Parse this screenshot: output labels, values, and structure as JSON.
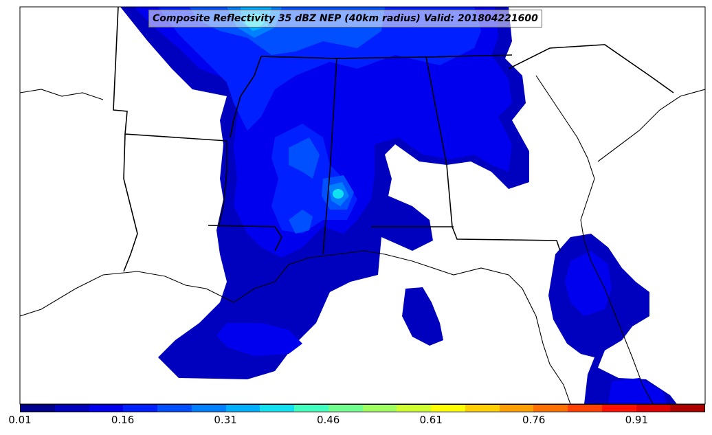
{
  "title": "Composite Reflectivity 35 dBZ NEP (40km radius) Valid: 201804221600",
  "colorbar": {
    "colors": [
      "#00008f",
      "#0000bf",
      "#0000ef",
      "#0020ff",
      "#0050ff",
      "#0080ff",
      "#00b0ff",
      "#10e0ef",
      "#40ffbf",
      "#70ff8f",
      "#a0ff60",
      "#d0ff30",
      "#ffff00",
      "#ffcf00",
      "#ff9f00",
      "#ff7000",
      "#ff4000",
      "#ff1000",
      "#df0000",
      "#af0000"
    ],
    "ticks": [
      "0.01",
      "0.16",
      "0.31",
      "0.46",
      "0.61",
      "0.76",
      "0.91"
    ]
  }
}
